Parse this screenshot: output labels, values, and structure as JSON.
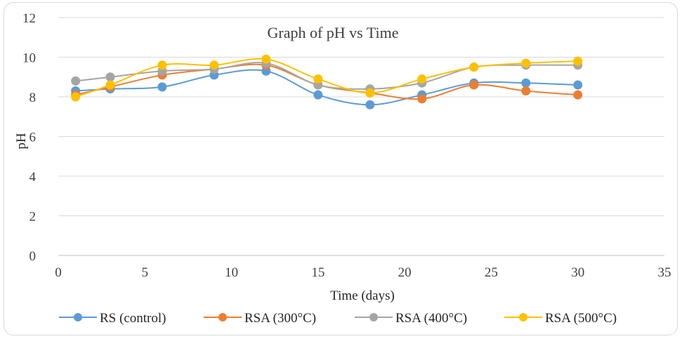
{
  "chart_data": {
    "type": "line",
    "title": "Graph of pH vs Time",
    "xlabel": "Time (days)",
    "ylabel": "pH",
    "xlim": [
      0,
      35
    ],
    "ylim": [
      0,
      12
    ],
    "xticks": [
      0,
      5,
      10,
      15,
      20,
      25,
      30,
      35
    ],
    "yticks": [
      0,
      2,
      4,
      6,
      8,
      10,
      12
    ],
    "grid": "horizontal",
    "legend_position": "bottom",
    "x": [
      1,
      3,
      6,
      9,
      12,
      15,
      18,
      21,
      24,
      27,
      30
    ],
    "series": [
      {
        "name": "RS (control)",
        "color": "#5b9bd5",
        "values": [
          8.3,
          8.4,
          8.5,
          9.1,
          9.3,
          8.1,
          7.6,
          8.1,
          8.7,
          8.7,
          8.6
        ]
      },
      {
        "name": "RSA (300°C)",
        "color": "#ed7d31",
        "values": [
          8.1,
          8.5,
          9.1,
          9.4,
          9.6,
          8.6,
          8.2,
          7.9,
          8.6,
          8.3,
          8.1
        ]
      },
      {
        "name": "RSA (400°C)",
        "color": "#a5a5a5",
        "values": [
          8.8,
          9.0,
          9.3,
          9.4,
          9.7,
          8.6,
          8.4,
          8.7,
          9.5,
          9.6,
          9.6
        ]
      },
      {
        "name": "RSA (500°C)",
        "color": "#ffc000",
        "values": [
          8.0,
          8.6,
          9.6,
          9.6,
          9.9,
          8.9,
          8.2,
          8.9,
          9.5,
          9.7,
          9.8
        ]
      }
    ]
  }
}
